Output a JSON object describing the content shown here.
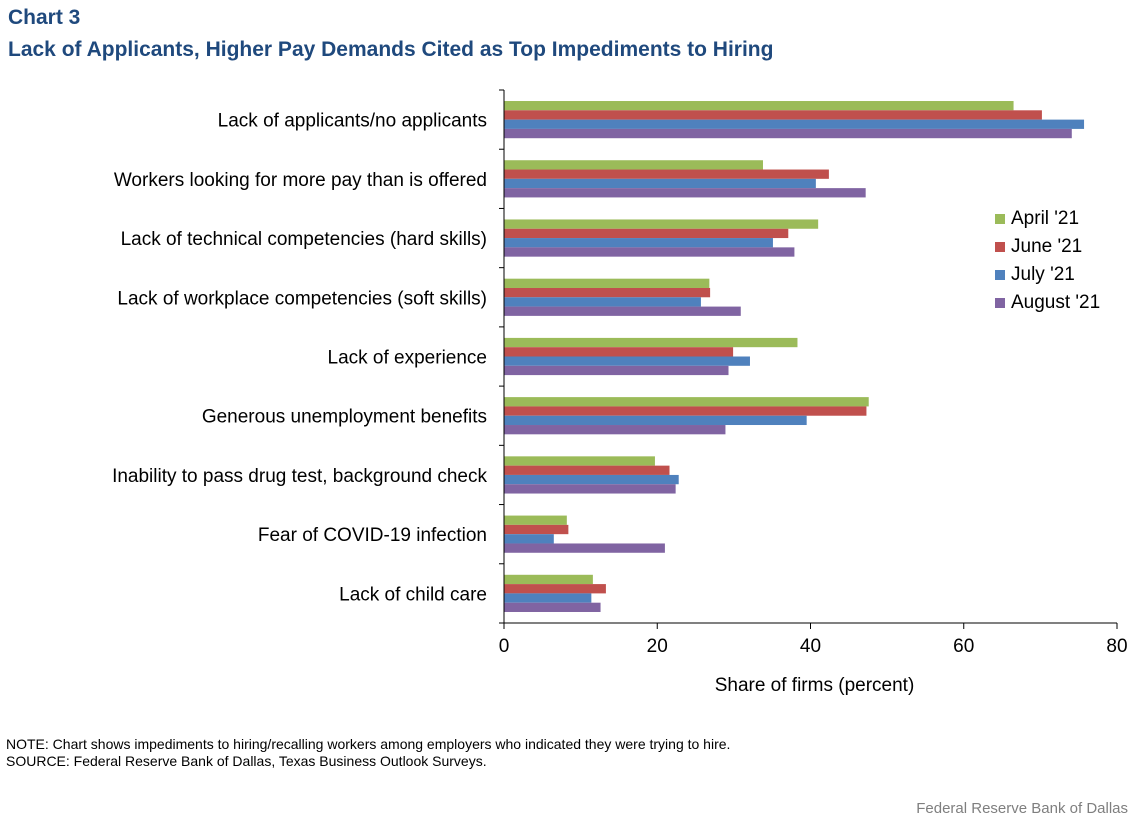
{
  "header": {
    "chart_number": "Chart 3",
    "title": "Lack of Applicants, Higher Pay Demands Cited as Top Impediments  to Hiring"
  },
  "chart_data": {
    "type": "bar",
    "orientation": "horizontal",
    "title": "Lack of Applicants, Higher Pay Demands Cited as Top Impediments  to Hiring",
    "xlabel": "Share of firms (percent)",
    "ylabel": "",
    "xlim": [
      0,
      80
    ],
    "xticks": [
      0,
      20,
      40,
      60,
      80
    ],
    "grid": false,
    "legend_position": "right",
    "categories": [
      "Lack of applicants/no applicants",
      "Workers looking for more pay than is offered",
      "Lack of technical competencies (hard skills)",
      "Lack of workplace competencies (soft skills)",
      "Lack of experience",
      "Generous unemployment benefits",
      "Inability to pass drug test, background check",
      "Fear of COVID-19 infection",
      "Lack of child care"
    ],
    "series": [
      {
        "name": "April '21",
        "color": "#9bbb59",
        "values": [
          66.5,
          33.8,
          41.0,
          26.8,
          38.3,
          47.6,
          19.7,
          8.2,
          11.6
        ]
      },
      {
        "name": "June '21",
        "color": "#c0504d",
        "values": [
          70.2,
          42.4,
          37.1,
          26.9,
          29.9,
          47.3,
          21.6,
          8.4,
          13.3
        ]
      },
      {
        "name": "July '21",
        "color": "#4f81bd",
        "values": [
          75.7,
          40.7,
          35.1,
          25.7,
          32.1,
          39.5,
          22.8,
          6.5,
          11.4
        ]
      },
      {
        "name": "August '21",
        "color": "#8064a2",
        "values": [
          74.1,
          47.2,
          37.9,
          30.9,
          29.3,
          28.9,
          22.4,
          21.0,
          12.6
        ]
      }
    ]
  },
  "notes": {
    "note": "NOTE:  Chart shows impediments to hiring/recalling workers among employers who indicated they were trying to hire.",
    "source": "SOURCE:  Federal Reserve Bank of Dallas, Texas Business Outlook Surveys."
  },
  "credit": "Federal Reserve  Bank of Dallas"
}
